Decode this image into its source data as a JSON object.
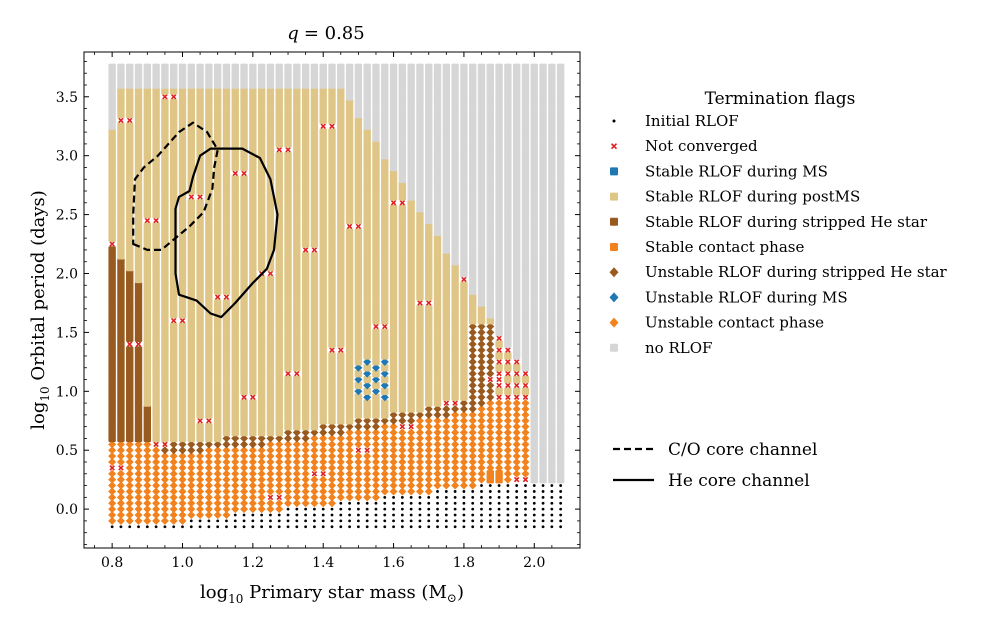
{
  "chart_data": {
    "type": "scatter",
    "title": "q = 0.85",
    "title_var": "q",
    "title_value": "= 0.85",
    "xlabel": "log10 Primary star mass (M☉)",
    "xlabel_parts": {
      "prefix": "log",
      "sub": "10",
      "main": " Primary star mass (M",
      "sym": "⊙",
      "end": ")"
    },
    "ylabel": "log10 Orbital period (days)",
    "ylabel_parts": {
      "prefix": "log",
      "sub": "10",
      "main": " Orbital period (days)"
    },
    "xlim": [
      0.72,
      2.13
    ],
    "ylim": [
      -0.33,
      3.88
    ],
    "xticks": [
      0.8,
      1.0,
      1.2,
      1.4,
      1.6,
      1.8,
      2.0
    ],
    "xtick_labels": [
      "0.8",
      "1.0",
      "1.2",
      "1.4",
      "1.6",
      "1.8",
      "2.0"
    ],
    "yticks": [
      0.0,
      0.5,
      1.0,
      1.5,
      2.0,
      2.5,
      3.0,
      3.5
    ],
    "ytick_labels": [
      "0.0",
      "0.5",
      "1.0",
      "1.5",
      "2.0",
      "2.5",
      "3.0",
      "3.5"
    ],
    "grid": {
      "x_start": 0.8,
      "x_step": 0.025,
      "x_count": 52,
      "y_start": -0.15,
      "y_step": 0.05,
      "y_count": 80
    },
    "legend_title": "Termination flags",
    "legend": [
      {
        "key": "initial_rlof",
        "label": "Initial RLOF",
        "marker": "dot",
        "color": "#000000"
      },
      {
        "key": "not_converged",
        "label": "Not converged",
        "marker": "x",
        "color": "#e02020"
      },
      {
        "key": "stable_ms",
        "label": "Stable RLOF during MS",
        "marker": "square",
        "color": "#1f77b4"
      },
      {
        "key": "stable_postms",
        "label": "Stable RLOF during postMS",
        "marker": "square",
        "color": "#dfc687"
      },
      {
        "key": "stable_stripped",
        "label": "Stable RLOF during stripped He star",
        "marker": "square",
        "color": "#985a1e"
      },
      {
        "key": "stable_contact",
        "label": "Stable contact phase",
        "marker": "square",
        "color": "#f2821d"
      },
      {
        "key": "unstable_stripped",
        "label": "Unstable RLOF during stripped He star",
        "marker": "diamond",
        "color": "#985a1e"
      },
      {
        "key": "unstable_ms",
        "label": "Unstable RLOF during MS",
        "marker": "diamond",
        "color": "#1f77b4"
      },
      {
        "key": "unstable_contact",
        "label": "Unstable contact phase",
        "marker": "diamond",
        "color": "#f2821d"
      },
      {
        "key": "no_rlof",
        "label": "no RLOF",
        "marker": "square",
        "color": "#d6d6d6"
      }
    ],
    "channels": [
      {
        "name": "C/O core channel",
        "style": "dashed",
        "points": [
          [
            0.86,
            2.25
          ],
          [
            0.9,
            2.2
          ],
          [
            0.94,
            2.2
          ],
          [
            0.98,
            2.3
          ],
          [
            1.02,
            2.4
          ],
          [
            1.06,
            2.52
          ],
          [
            1.085,
            2.72
          ],
          [
            1.09,
            2.9
          ],
          [
            1.1,
            3.05
          ],
          [
            1.07,
            3.2
          ],
          [
            1.03,
            3.28
          ],
          [
            0.99,
            3.2
          ],
          [
            0.93,
            3.0
          ],
          [
            0.89,
            2.9
          ],
          [
            0.865,
            2.8
          ],
          [
            0.86,
            2.5
          ],
          [
            0.86,
            2.25
          ]
        ]
      },
      {
        "name": "He core channel",
        "style": "solid",
        "points": [
          [
            0.98,
            2.0
          ],
          [
            0.98,
            2.55
          ],
          [
            0.99,
            2.65
          ],
          [
            1.02,
            2.7
          ],
          [
            1.03,
            2.82
          ],
          [
            1.05,
            3.0
          ],
          [
            1.08,
            3.06
          ],
          [
            1.17,
            3.06
          ],
          [
            1.22,
            2.98
          ],
          [
            1.25,
            2.8
          ],
          [
            1.27,
            2.5
          ],
          [
            1.26,
            2.2
          ],
          [
            1.24,
            2.04
          ],
          [
            1.2,
            1.92
          ],
          [
            1.15,
            1.75
          ],
          [
            1.11,
            1.63
          ],
          [
            1.08,
            1.66
          ],
          [
            1.04,
            1.77
          ],
          [
            0.99,
            1.82
          ],
          [
            0.98,
            2.0
          ]
        ]
      }
    ],
    "channel_legend": [
      {
        "label": "C/O core channel",
        "style": "dashed"
      },
      {
        "label": "He core channel",
        "style": "solid"
      }
    ]
  }
}
